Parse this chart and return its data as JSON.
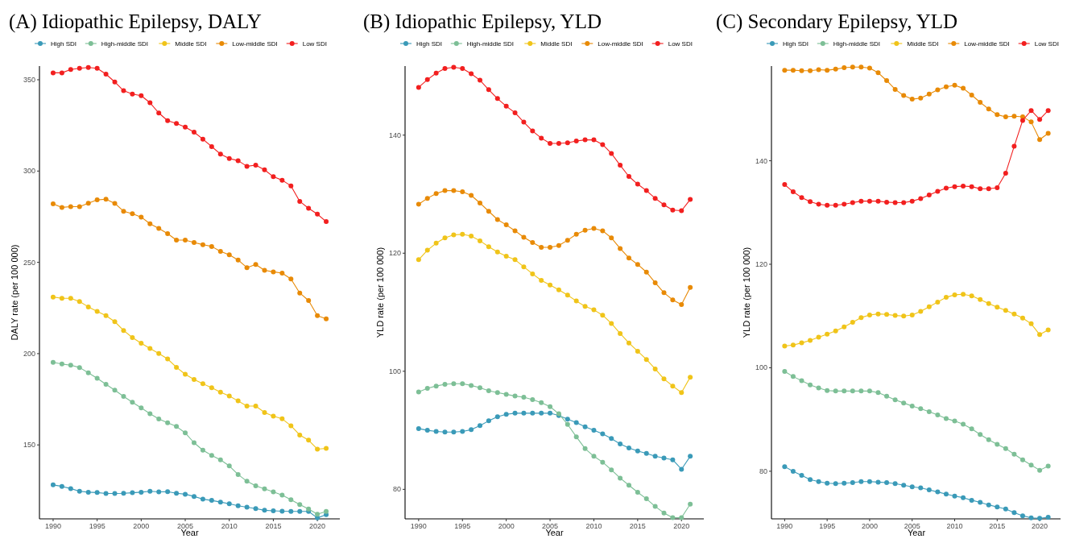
{
  "chart_data": [
    {
      "type": "line",
      "title": "(A) Idiopathic Epilepsy, DALY",
      "xlabel": "Year",
      "ylabel": "DALY rate (per 100 000)",
      "legend": "top",
      "marker": "circle",
      "x": [
        1990,
        1991,
        1992,
        1993,
        1994,
        1995,
        1996,
        1997,
        1998,
        1999,
        2000,
        2001,
        2002,
        2003,
        2004,
        2005,
        2006,
        2007,
        2008,
        2009,
        2010,
        2011,
        2012,
        2013,
        2014,
        2015,
        2016,
        2017,
        2018,
        2019,
        2020,
        2021
      ],
      "xlim": [
        1988.45,
        2022.55
      ],
      "xticks": [
        1990,
        1995,
        2000,
        2005,
        2010,
        2015,
        2020
      ],
      "ylim": [
        109.5,
        357.5
      ],
      "yticks": [
        150,
        200,
        250,
        300,
        350
      ],
      "series": [
        {
          "name": "High SDI",
          "color": "#3a9ab8",
          "values": [
            128.1,
            127.3,
            126.1,
            124.6,
            124.1,
            123.9,
            123.4,
            123.4,
            123.5,
            123.8,
            124.1,
            124.6,
            124.3,
            124.4,
            123.5,
            123,
            121.8,
            120.3,
            119.6,
            118.7,
            117.8,
            116.7,
            115.9,
            115.1,
            114.2,
            113.9,
            113.7,
            113.6,
            113.6,
            113.6,
            110,
            111.8
          ]
        },
        {
          "name": "High-middle SDI",
          "color": "#7dbf96",
          "values": [
            195.2,
            194.3,
            193.7,
            192.4,
            189.5,
            186.5,
            183.2,
            180,
            176.6,
            173.4,
            170.3,
            167.1,
            164.2,
            162.1,
            160.1,
            156.6,
            151.2,
            147.1,
            144.3,
            141.8,
            138.5,
            133.8,
            130.1,
            127.6,
            125.9,
            124.3,
            122.5,
            120,
            117.3,
            114.9,
            112,
            113.6
          ]
        },
        {
          "name": "Middle SDI",
          "color": "#f0c419",
          "values": [
            231,
            230.3,
            230.3,
            228.5,
            225.6,
            223.1,
            220.8,
            217.5,
            212.7,
            208.8,
            205.7,
            202.8,
            200.1,
            197.1,
            192.5,
            188.7,
            185.8,
            183.5,
            181.3,
            178.9,
            176.8,
            174.1,
            171.3,
            171.3,
            167.8,
            165.8,
            164.3,
            160.5,
            155.4,
            152.6,
            147.7,
            148.1
          ]
        },
        {
          "name": "Low-middle SDI",
          "color": "#e88a06",
          "values": [
            282,
            280.1,
            280.5,
            280.5,
            282.4,
            284.2,
            284.6,
            282.3,
            278,
            276.6,
            274.8,
            271.1,
            268.6,
            265.7,
            262.2,
            262.2,
            260.9,
            259.7,
            258.7,
            256,
            254.1,
            251.3,
            247.1,
            248.8,
            245.6,
            244.8,
            244.1,
            240.9,
            233.2,
            229.1,
            220.8,
            219
          ]
        },
        {
          "name": "Low SDI",
          "color": "#f21f1f",
          "values": [
            353.8,
            353.8,
            355.6,
            356.3,
            356.7,
            356.3,
            353.1,
            348.8,
            344,
            342.2,
            341.3,
            337.4,
            331.8,
            327.6,
            326.1,
            324.1,
            321.3,
            317.5,
            313.4,
            309.3,
            306.9,
            305.7,
            302.6,
            303.2,
            300.7,
            296.9,
            295,
            291.9,
            283.4,
            279.6,
            276.4,
            272.3
          ]
        }
      ]
    },
    {
      "type": "line",
      "title": "(B) Idiopathic Epilepsy, YLD",
      "xlabel": "Year",
      "ylabel": "YLD rate (per 100 000)",
      "legend": "top",
      "marker": "circle",
      "x": [
        1990,
        1991,
        1992,
        1993,
        1994,
        1995,
        1996,
        1997,
        1998,
        1999,
        2000,
        2001,
        2002,
        2003,
        2004,
        2005,
        2006,
        2007,
        2008,
        2009,
        2010,
        2011,
        2012,
        2013,
        2014,
        2015,
        2016,
        2017,
        2018,
        2019,
        2020,
        2021
      ],
      "xlim": [
        1988.45,
        2022.55
      ],
      "xticks": [
        1990,
        1995,
        2000,
        2005,
        2010,
        2015,
        2020
      ],
      "ylim": [
        75,
        151.7
      ],
      "yticks": [
        80,
        100,
        120,
        140
      ],
      "series": [
        {
          "name": "High SDI",
          "color": "#3a9ab8",
          "values": [
            90.3,
            90,
            89.8,
            89.7,
            89.7,
            89.8,
            90.1,
            90.8,
            91.6,
            92.3,
            92.7,
            92.9,
            92.9,
            92.9,
            92.9,
            92.9,
            92.5,
            91.9,
            91.3,
            90.6,
            90,
            89.4,
            88.6,
            87.7,
            87,
            86.5,
            86.1,
            85.6,
            85.3,
            85,
            83.4,
            85.6
          ]
        },
        {
          "name": "High-middle SDI",
          "color": "#7dbf96",
          "values": [
            96.5,
            97.1,
            97.5,
            97.8,
            97.9,
            97.9,
            97.6,
            97.2,
            96.7,
            96.4,
            96.1,
            95.8,
            95.6,
            95.2,
            94.7,
            94,
            92.8,
            91,
            88.9,
            86.9,
            85.6,
            84.6,
            83.3,
            81.9,
            80.7,
            79.5,
            78.4,
            77.1,
            76,
            75.2,
            75.2,
            77.5
          ]
        },
        {
          "name": "Middle SDI",
          "color": "#f0c419",
          "values": [
            118.9,
            120.5,
            121.7,
            122.6,
            123.1,
            123.2,
            122.9,
            122.1,
            121.1,
            120.2,
            119.5,
            118.9,
            117.7,
            116.5,
            115.4,
            114.6,
            113.8,
            112.9,
            111.9,
            111,
            110.4,
            109.5,
            108.1,
            106.4,
            104.8,
            103.4,
            102,
            100.4,
            98.7,
            97.5,
            96.4,
            99
          ]
        },
        {
          "name": "Low-middle SDI",
          "color": "#e88a06",
          "values": [
            128.3,
            129.3,
            130.1,
            130.6,
            130.6,
            130.4,
            129.8,
            128.5,
            127.1,
            125.7,
            124.8,
            123.8,
            122.7,
            121.8,
            121,
            121,
            121.3,
            122.2,
            123.2,
            123.9,
            124.2,
            123.8,
            122.6,
            120.8,
            119.2,
            118.1,
            116.8,
            115,
            113.3,
            112.1,
            111.3,
            114.2
          ]
        },
        {
          "name": "Low SDI",
          "color": "#f21f1f",
          "values": [
            148.1,
            149.4,
            150.5,
            151.3,
            151.5,
            151.3,
            150.4,
            149.3,
            147.7,
            146.2,
            144.9,
            143.8,
            142.2,
            140.7,
            139.5,
            138.6,
            138.6,
            138.7,
            139,
            139.2,
            139.2,
            138.4,
            136.9,
            134.9,
            133,
            131.7,
            130.6,
            129.3,
            128.2,
            127.3,
            127.2,
            129.1
          ]
        }
      ]
    },
    {
      "type": "line",
      "title": "(C) Secondary Epilepsy, YLD",
      "xlabel": "Year",
      "ylabel": "YLD rate (per 100 000)",
      "legend": "top",
      "marker": "circle",
      "x": [
        1990,
        1991,
        1992,
        1993,
        1994,
        1995,
        1996,
        1997,
        1998,
        1999,
        2000,
        2001,
        2002,
        2003,
        2004,
        2005,
        2006,
        2007,
        2008,
        2009,
        2010,
        2011,
        2012,
        2013,
        2014,
        2015,
        2016,
        2017,
        2018,
        2019,
        2020,
        2021
      ],
      "xlim": [
        1988.45,
        2022.55
      ],
      "xticks": [
        1990,
        1995,
        2000,
        2005,
        2010,
        2015,
        2020
      ],
      "ylim": [
        70.8,
        158.3
      ],
      "yticks": [
        80,
        100,
        120,
        140
      ],
      "series": [
        {
          "name": "High SDI",
          "color": "#3a9ab8",
          "values": [
            80.9,
            80,
            79.2,
            78.4,
            78,
            77.7,
            77.6,
            77.7,
            77.8,
            78,
            78,
            77.9,
            77.8,
            77.6,
            77.3,
            77,
            76.8,
            76.4,
            76,
            75.6,
            75.2,
            74.9,
            74.4,
            74,
            73.5,
            73.1,
            72.7,
            72,
            71.4,
            71,
            70.9,
            71.1
          ]
        },
        {
          "name": "High-middle SDI",
          "color": "#7dbf96",
          "values": [
            99.3,
            98.3,
            97.5,
            96.7,
            96.1,
            95.6,
            95.5,
            95.5,
            95.5,
            95.5,
            95.5,
            95.2,
            94.5,
            93.8,
            93.2,
            92.6,
            92.1,
            91.5,
            90.9,
            90.2,
            89.7,
            89.1,
            88.2,
            87.1,
            86.1,
            85.2,
            84.4,
            83.3,
            82.2,
            81.2,
            80.2,
            81
          ]
        },
        {
          "name": "Middle SDI",
          "color": "#f0c419",
          "values": [
            104.2,
            104.4,
            104.8,
            105.3,
            105.9,
            106.5,
            107.1,
            107.9,
            108.8,
            109.7,
            110.2,
            110.4,
            110.3,
            110.1,
            110,
            110.2,
            110.9,
            111.8,
            112.7,
            113.6,
            114.1,
            114.2,
            113.9,
            113.2,
            112.4,
            111.7,
            111.1,
            110.4,
            109.6,
            108.5,
            106.4,
            107.3
          ]
        },
        {
          "name": "Low-middle SDI",
          "color": "#e88a06",
          "values": [
            157.5,
            157.5,
            157.4,
            157.4,
            157.6,
            157.5,
            157.7,
            158,
            158.1,
            158.1,
            157.9,
            157,
            155.5,
            153.8,
            152.6,
            151.9,
            152.1,
            152.9,
            153.7,
            154.3,
            154.6,
            154,
            152.7,
            151.3,
            150,
            148.9,
            148.5,
            148.6,
            148.5,
            147.5,
            144.1,
            145.3
          ]
        },
        {
          "name": "Low SDI",
          "color": "#f21f1f",
          "values": [
            135.4,
            134,
            132.9,
            132.1,
            131.6,
            131.4,
            131.4,
            131.6,
            131.9,
            132.2,
            132.2,
            132.2,
            132,
            131.9,
            131.9,
            132.2,
            132.7,
            133.4,
            134.1,
            134.7,
            135,
            135.1,
            135,
            134.6,
            134.6,
            134.8,
            137.6,
            142.8,
            147.8,
            149.7,
            148,
            149.7
          ]
        }
      ]
    }
  ]
}
